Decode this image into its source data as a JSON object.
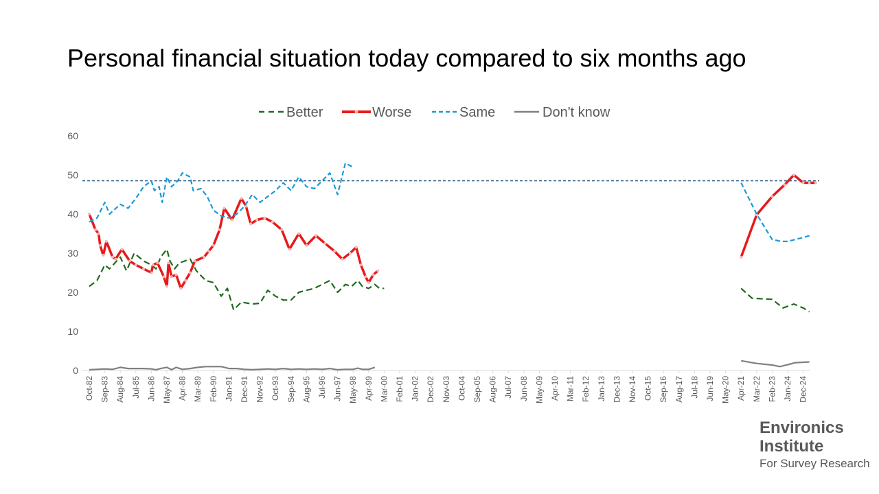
{
  "chart_data": {
    "type": "line",
    "title": "Personal financial situation today compared to six months ago",
    "ylim": [
      0,
      60
    ],
    "yticks": [
      0,
      10,
      20,
      30,
      40,
      50,
      60
    ],
    "xtick_labels": [
      "Oct-82",
      "Sep-83",
      "Aug-84",
      "Jul-85",
      "Jun-86",
      "May-87",
      "Apr-88",
      "Mar-89",
      "Feb-90",
      "Jan-91",
      "Dec-91",
      "Nov-92",
      "Oct-93",
      "Sep-94",
      "Aug-95",
      "Jul-96",
      "Jun-97",
      "May-98",
      "Apr-99",
      "Mar-00",
      "Feb-01",
      "Jan-02",
      "Dec-02",
      "Nov-03",
      "Oct-04",
      "Sep-05",
      "Aug-06",
      "Jul-07",
      "Jun-08",
      "May-09",
      "Apr-10",
      "Mar-11",
      "Feb-12",
      "Jan-13",
      "Dec-13",
      "Nov-14",
      "Oct-15",
      "Sep-16",
      "Aug-17",
      "Jul-18",
      "Jun-19",
      "May-20",
      "Apr-21",
      "Mar-22",
      "Feb-23",
      "Jan-24",
      "Dec-24"
    ],
    "reference_line": 48.5,
    "grid": false,
    "legend_position": "top",
    "series": [
      {
        "name": "Better",
        "color": "#1e6b1e",
        "style": "dash",
        "points": [
          [
            0,
            21.5
          ],
          [
            0.5,
            23
          ],
          [
            1,
            27
          ],
          [
            1.3,
            26
          ],
          [
            2,
            29
          ],
          [
            2.4,
            25.5
          ],
          [
            2.9,
            30
          ],
          [
            3.5,
            28
          ],
          [
            4,
            27
          ],
          [
            4.3,
            26
          ],
          [
            4.6,
            29
          ],
          [
            5,
            31
          ],
          [
            5.2,
            28
          ],
          [
            5.5,
            26
          ],
          [
            5.8,
            27.5
          ],
          [
            6.5,
            28.5
          ],
          [
            6.9,
            25.5
          ],
          [
            7.5,
            23
          ],
          [
            8,
            22.5
          ],
          [
            8.5,
            19
          ],
          [
            8.9,
            21
          ],
          [
            9.3,
            15.5
          ],
          [
            9.8,
            17.5
          ],
          [
            10.5,
            17
          ],
          [
            11,
            17.2
          ],
          [
            11.5,
            20.5
          ],
          [
            12,
            19
          ],
          [
            12.5,
            18
          ],
          [
            13,
            18
          ],
          [
            13.5,
            20
          ],
          [
            14,
            20.5
          ],
          [
            14.5,
            21
          ],
          [
            15,
            22
          ],
          [
            15.5,
            23
          ],
          [
            16,
            20
          ],
          [
            16.5,
            22
          ],
          [
            16.9,
            21.5
          ],
          [
            17.3,
            23
          ],
          [
            17.6,
            21.5
          ],
          [
            18,
            21
          ],
          [
            18.4,
            22
          ],
          [
            18.7,
            21
          ],
          [
            19,
            21
          ],
          [
            42,
            21
          ],
          [
            42.7,
            18.5
          ],
          [
            43.5,
            18.3
          ],
          [
            44,
            18.2
          ],
          [
            44.7,
            16
          ],
          [
            45.4,
            17
          ],
          [
            46,
            16
          ],
          [
            46.4,
            15
          ]
        ]
      },
      {
        "name": "Worse",
        "color": "#e8191a",
        "style": "solid",
        "points": [
          [
            0,
            40
          ],
          [
            0.4,
            36
          ],
          [
            0.6,
            35
          ],
          [
            0.7,
            32
          ],
          [
            0.9,
            29.5
          ],
          [
            1.1,
            33
          ],
          [
            1.5,
            29
          ],
          [
            1.7,
            28.5
          ],
          [
            2.1,
            31
          ],
          [
            2.6,
            28
          ],
          [
            3,
            27
          ],
          [
            3.5,
            26
          ],
          [
            4,
            25
          ],
          [
            4.1,
            27
          ],
          [
            4.4,
            27.5
          ],
          [
            4.8,
            24
          ],
          [
            5,
            21.5
          ],
          [
            5.1,
            27.5
          ],
          [
            5.3,
            24
          ],
          [
            5.6,
            24.5
          ],
          [
            5.9,
            21
          ],
          [
            6.2,
            23
          ],
          [
            6.5,
            25
          ],
          [
            6.8,
            28
          ],
          [
            7.4,
            29
          ],
          [
            7.7,
            30.5
          ],
          [
            8,
            32
          ],
          [
            8.4,
            36
          ],
          [
            8.7,
            41.5
          ],
          [
            9.2,
            38.5
          ],
          [
            9.8,
            44
          ],
          [
            10.1,
            42
          ],
          [
            10.4,
            37.5
          ],
          [
            10.8,
            38.5
          ],
          [
            11.3,
            39
          ],
          [
            11.8,
            38
          ],
          [
            12.4,
            36
          ],
          [
            12.9,
            31
          ],
          [
            13.5,
            35
          ],
          [
            14,
            32
          ],
          [
            14.6,
            34.5
          ],
          [
            15.2,
            32.5
          ],
          [
            15.8,
            30.5
          ],
          [
            16.3,
            28.5
          ],
          [
            16.8,
            30
          ],
          [
            17.2,
            31.5
          ],
          [
            17.5,
            27
          ],
          [
            17.8,
            24
          ],
          [
            18,
            22.5
          ],
          [
            18.3,
            24.5
          ],
          [
            18.6,
            25.5
          ],
          [
            42,
            29
          ],
          [
            43,
            39.8
          ],
          [
            44,
            44.5
          ],
          [
            44.8,
            47.5
          ],
          [
            45.4,
            50
          ],
          [
            46,
            48
          ],
          [
            46.4,
            48
          ],
          [
            46.8,
            48
          ]
        ]
      },
      {
        "name": "Same",
        "color": "#1a9ad6",
        "style": "dash",
        "points": [
          [
            0,
            38
          ],
          [
            0.5,
            39
          ],
          [
            1,
            43
          ],
          [
            1.3,
            40
          ],
          [
            2,
            42.5
          ],
          [
            2.5,
            41.5
          ],
          [
            3,
            44
          ],
          [
            3.5,
            47
          ],
          [
            4,
            48.5
          ],
          [
            4.2,
            46
          ],
          [
            4.5,
            47
          ],
          [
            4.7,
            43
          ],
          [
            5,
            49.5
          ],
          [
            5.3,
            47
          ],
          [
            5.7,
            48.5
          ],
          [
            6,
            50.5
          ],
          [
            6.5,
            49.5
          ],
          [
            6.7,
            46
          ],
          [
            7.2,
            46.5
          ],
          [
            7.6,
            44.5
          ],
          [
            8,
            41
          ],
          [
            8.5,
            39.5
          ],
          [
            9,
            39
          ],
          [
            9.5,
            40
          ],
          [
            10,
            42
          ],
          [
            10.5,
            45
          ],
          [
            11,
            43
          ],
          [
            11.5,
            44.5
          ],
          [
            12,
            46
          ],
          [
            12.5,
            48
          ],
          [
            13,
            46
          ],
          [
            13.5,
            49.5
          ],
          [
            14,
            47
          ],
          [
            14.5,
            46.5
          ],
          [
            15,
            48.5
          ],
          [
            15.5,
            50.5
          ],
          [
            16,
            45
          ],
          [
            16.5,
            53
          ],
          [
            17,
            52
          ],
          [
            42,
            48
          ],
          [
            43,
            40
          ],
          [
            44,
            33.5
          ],
          [
            44.6,
            33
          ],
          [
            45,
            33
          ],
          [
            45.5,
            33.5
          ],
          [
            46,
            34
          ],
          [
            46.4,
            34.5
          ]
        ]
      },
      {
        "name": "Don't know",
        "color": "#7f7f7f",
        "style": "solid",
        "points": [
          [
            0,
            0.2
          ],
          [
            0.5,
            0.3
          ],
          [
            1,
            0.4
          ],
          [
            1.5,
            0.3
          ],
          [
            2,
            0.8
          ],
          [
            2.5,
            0.5
          ],
          [
            3,
            0.5
          ],
          [
            3.5,
            0.5
          ],
          [
            4,
            0.4
          ],
          [
            4.3,
            0.2
          ],
          [
            4.6,
            0.5
          ],
          [
            5,
            0.8
          ],
          [
            5.3,
            0.2
          ],
          [
            5.6,
            0.8
          ],
          [
            6,
            0.3
          ],
          [
            6.5,
            0.5
          ],
          [
            7,
            0.8
          ],
          [
            7.5,
            1
          ],
          [
            8,
            1
          ],
          [
            8.5,
            1
          ],
          [
            9,
            0.5
          ],
          [
            9.5,
            0.5
          ],
          [
            10,
            0.3
          ],
          [
            10.5,
            0.2
          ],
          [
            11,
            0.3
          ],
          [
            11.5,
            0.4
          ],
          [
            12,
            0.3
          ],
          [
            12.5,
            0.5
          ],
          [
            13,
            0.3
          ],
          [
            13.5,
            0.4
          ],
          [
            14,
            0.3
          ],
          [
            14.5,
            0.4
          ],
          [
            15,
            0.3
          ],
          [
            15.5,
            0.5
          ],
          [
            16,
            0.2
          ],
          [
            16.5,
            0.3
          ],
          [
            17,
            0.3
          ],
          [
            17.3,
            0.6
          ],
          [
            17.6,
            0.3
          ],
          [
            18,
            0.3
          ],
          [
            18.4,
            0.8
          ],
          [
            42,
            2.5
          ],
          [
            43,
            1.8
          ],
          [
            44,
            1.4
          ],
          [
            44.5,
            1
          ],
          [
            45,
            1.5
          ],
          [
            45.5,
            2
          ],
          [
            46,
            2.1
          ],
          [
            46.4,
            2.2
          ]
        ]
      }
    ]
  },
  "logo": {
    "line1": "Environics",
    "line2": "Institute",
    "line3": "For Survey Research"
  }
}
